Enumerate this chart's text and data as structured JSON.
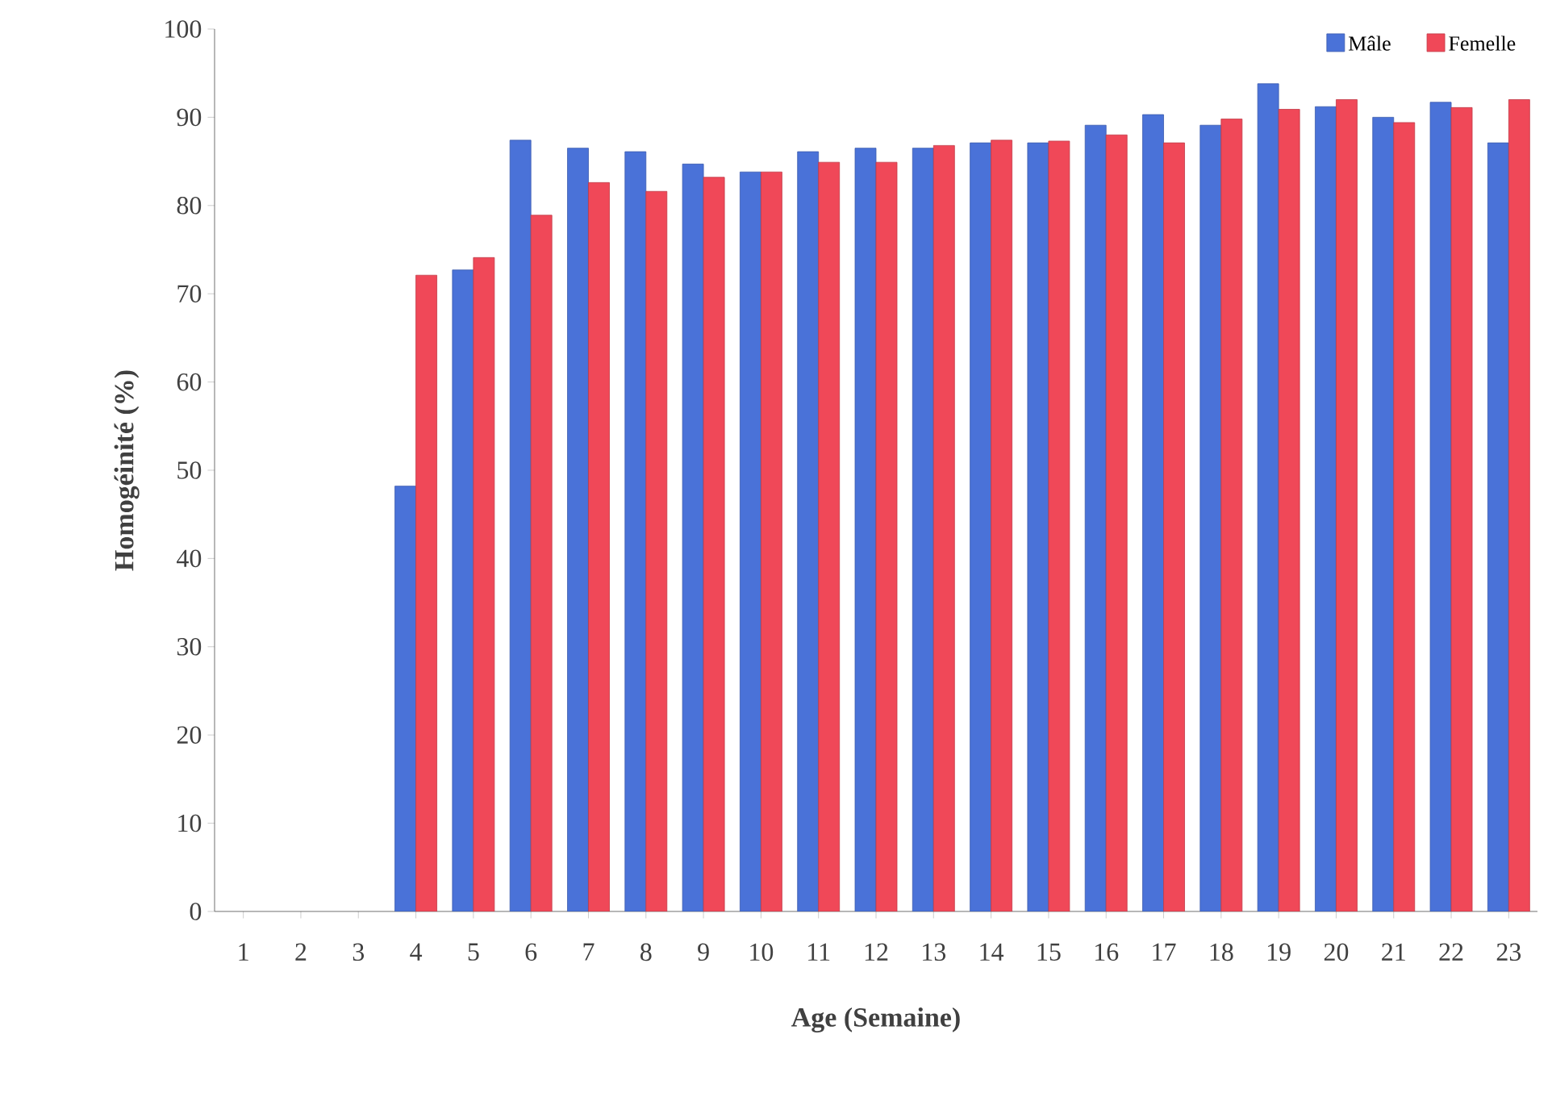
{
  "chart_data": {
    "type": "bar",
    "xlabel": "Age (Semaine)",
    "ylabel": "Homogéinité (%)",
    "categories": [
      "1",
      "2",
      "3",
      "4",
      "5",
      "6",
      "7",
      "8",
      "9",
      "10",
      "11",
      "12",
      "13",
      "14",
      "15",
      "16",
      "17",
      "18",
      "19",
      "20",
      "21",
      "22",
      "23"
    ],
    "series": [
      {
        "name": "Mâle",
        "color": "#4a72d8",
        "values": [
          null,
          null,
          null,
          48.2,
          72.7,
          87.4,
          86.5,
          86.1,
          84.7,
          83.8,
          86.1,
          86.5,
          86.5,
          87.1,
          87.1,
          89.1,
          90.3,
          89.1,
          93.8,
          91.2,
          90.0,
          91.7,
          87.1
        ]
      },
      {
        "name": "Femelle",
        "color": "#f04858",
        "values": [
          null,
          null,
          null,
          72.1,
          74.1,
          78.9,
          82.6,
          81.6,
          83.2,
          83.8,
          84.9,
          84.9,
          86.8,
          87.4,
          87.3,
          88.0,
          87.1,
          89.8,
          90.9,
          92.0,
          89.4,
          91.1,
          92.0
        ]
      }
    ],
    "ylim": [
      0,
      100
    ],
    "yticks": [
      0,
      10,
      20,
      30,
      40,
      50,
      60,
      70,
      80,
      90,
      100
    ],
    "legend": "top right",
    "grid": false
  }
}
